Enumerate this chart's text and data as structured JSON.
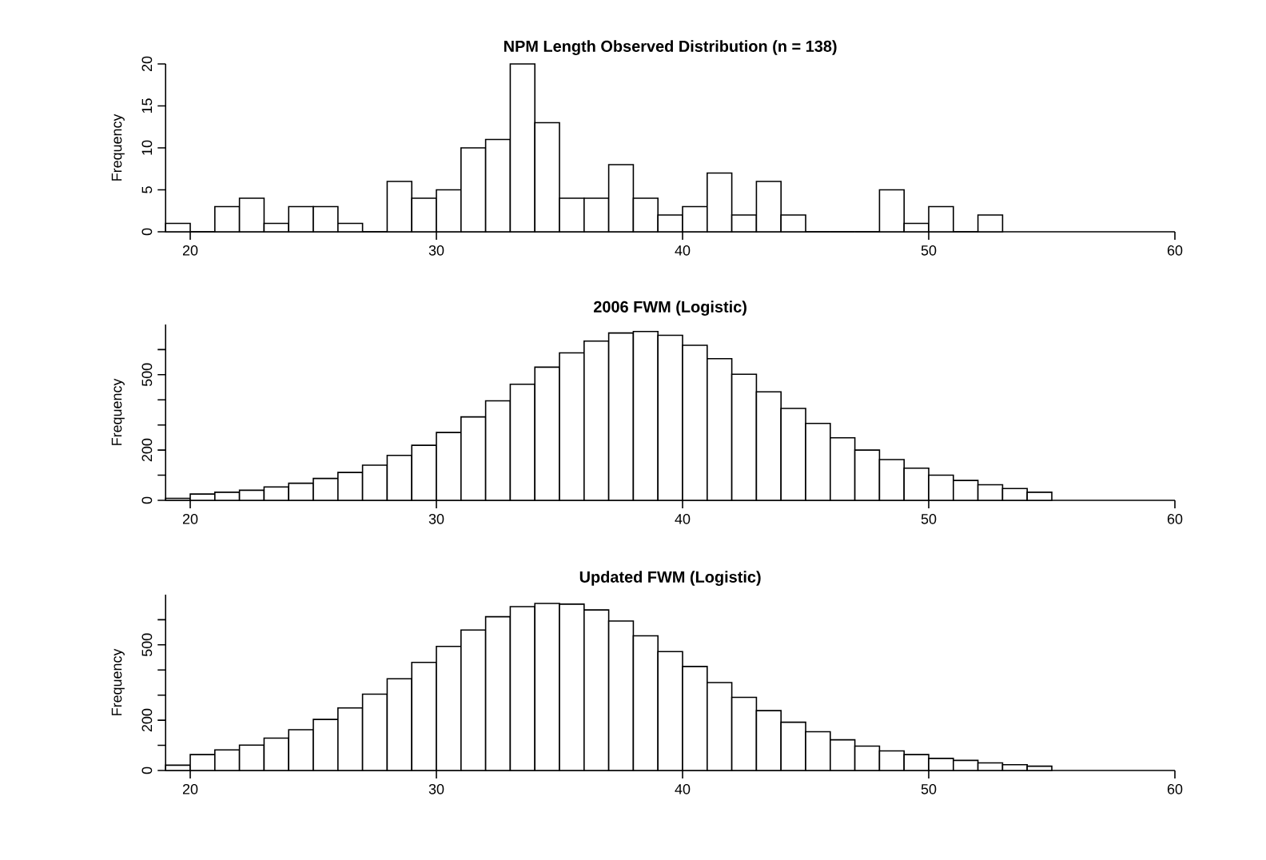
{
  "chart_data": [
    {
      "type": "histogram",
      "title": "NPM Length Observed Distribution (n = 138)",
      "ylabel": "Frequency",
      "color": "#ffffff",
      "bins": [
        19,
        20,
        21,
        22,
        23,
        24,
        25,
        26,
        27,
        28,
        29,
        30,
        31,
        32,
        33,
        34,
        35,
        36,
        37,
        38,
        39,
        40,
        41,
        42,
        43,
        44,
        45,
        46,
        47,
        48,
        49,
        50,
        51,
        52,
        53
      ],
      "values": [
        1,
        0,
        3,
        4,
        1,
        3,
        3,
        1,
        0,
        6,
        4,
        5,
        10,
        11,
        20,
        13,
        4,
        4,
        8,
        4,
        2,
        3,
        7,
        2,
        6,
        2,
        0,
        0,
        0,
        5,
        1,
        3,
        0,
        2
      ],
      "xlim": [
        19,
        60
      ],
      "xticks": [
        20,
        30,
        40,
        50,
        60
      ],
      "ylim": [
        0,
        20
      ],
      "yticks": [
        0,
        5,
        10,
        15,
        20
      ]
    },
    {
      "type": "histogram",
      "title": "2006 FWM (Logistic)",
      "ylabel": "Frequency",
      "color": "#ffffff",
      "bins": [
        19,
        20,
        21,
        22,
        23,
        24,
        25,
        26,
        27,
        28,
        29,
        30,
        31,
        32,
        33,
        34,
        35,
        36,
        37,
        38,
        39,
        40,
        41,
        42,
        43,
        44,
        45,
        46,
        47,
        48,
        49,
        50,
        51,
        52,
        53,
        54,
        55
      ],
      "values": [
        8,
        25,
        32,
        40,
        53,
        68,
        87,
        111,
        140,
        179,
        219,
        270,
        332,
        396,
        462,
        530,
        587,
        634,
        666,
        672,
        657,
        617,
        564,
        502,
        432,
        366,
        306,
        249,
        200,
        162,
        128,
        100,
        79,
        62,
        47,
        32
      ],
      "xlim": [
        19,
        60
      ],
      "xticks": [
        20,
        30,
        40,
        50,
        60
      ],
      "ylim": [
        0,
        700
      ],
      "yticks": [
        0,
        {
          "value": 100,
          "label": null
        },
        200,
        {
          "value": 300,
          "label": null
        },
        {
          "value": 400,
          "label": null
        },
        500,
        {
          "value": 600,
          "label": null
        }
      ]
    },
    {
      "type": "histogram",
      "title": "Updated FWM (Logistic)",
      "ylabel": "Frequency",
      "color": "#ffffff",
      "bins": [
        19,
        20,
        21,
        22,
        23,
        24,
        25,
        26,
        27,
        28,
        29,
        30,
        31,
        32,
        33,
        34,
        35,
        36,
        37,
        38,
        39,
        40,
        41,
        42,
        43,
        44,
        45,
        46,
        47,
        48,
        49,
        50,
        51,
        52,
        53,
        54,
        55
      ],
      "values": [
        21,
        63,
        82,
        101,
        129,
        162,
        203,
        249,
        304,
        365,
        430,
        494,
        559,
        612,
        652,
        665,
        662,
        639,
        595,
        536,
        473,
        414,
        350,
        291,
        238,
        192,
        154,
        122,
        97,
        78,
        63,
        48,
        40,
        30,
        23,
        17
      ],
      "xlim": [
        19,
        60
      ],
      "xticks": [
        20,
        30,
        40,
        50,
        60
      ],
      "ylim": [
        0,
        700
      ],
      "yticks": [
        0,
        {
          "value": 100,
          "label": null
        },
        200,
        {
          "value": 300,
          "label": null
        },
        {
          "value": 400,
          "label": null
        },
        500,
        {
          "value": 600,
          "label": null
        }
      ]
    }
  ]
}
